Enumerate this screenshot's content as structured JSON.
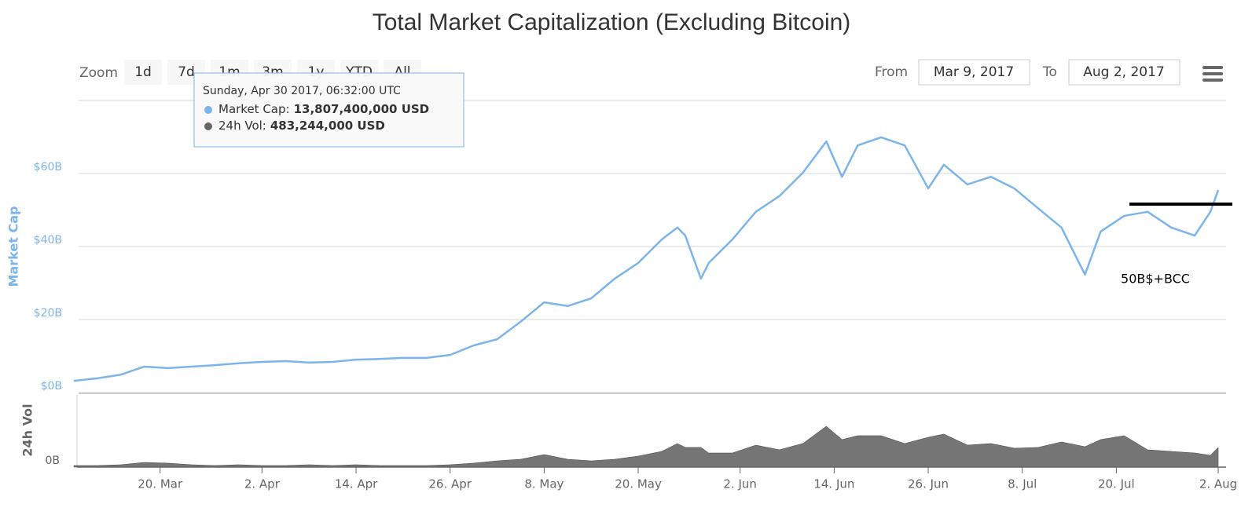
{
  "toolbar": {
    "zoom_label": "Zoom",
    "buttons": [
      "1d",
      "7d",
      "1m",
      "3m",
      "1y",
      "YTD",
      "All"
    ],
    "from_label": "From",
    "from": "Mar 9, 2017",
    "to_label": "To",
    "to": "Aug 2, 2017"
  },
  "tooltip": {
    "date": "Sunday, Apr 30 2017, 06:32:00 UTC",
    "rows": [
      {
        "label": "Market Cap:",
        "value": "13,807,400,000 USD",
        "color": "#7cb5ec"
      },
      {
        "label": "24h Vol:",
        "value": "483,244,000 USD",
        "color": "#666666"
      }
    ]
  },
  "chart_data": {
    "type": "line",
    "title": "Total Market Capitalization (Excluding Bitcoin)",
    "y_label": "Market Cap",
    "y2_label": "24h Vol",
    "annotation": "50B$+BCC",
    "x": [
      "2017-03-09",
      "2017-03-12",
      "2017-03-15",
      "2017-03-18",
      "2017-03-21",
      "2017-03-24",
      "2017-03-27",
      "2017-03-30",
      "2017-04-02",
      "2017-04-05",
      "2017-04-08",
      "2017-04-11",
      "2017-04-14",
      "2017-04-17",
      "2017-04-20",
      "2017-04-23",
      "2017-04-26",
      "2017-04-29",
      "2017-05-02",
      "2017-05-05",
      "2017-05-08",
      "2017-05-11",
      "2017-05-14",
      "2017-05-17",
      "2017-05-20",
      "2017-05-23",
      "2017-05-25",
      "2017-05-26",
      "2017-05-28",
      "2017-05-29",
      "2017-06-01",
      "2017-06-04",
      "2017-06-07",
      "2017-06-10",
      "2017-06-13",
      "2017-06-15",
      "2017-06-17",
      "2017-06-20",
      "2017-06-23",
      "2017-06-26",
      "2017-06-28",
      "2017-07-01",
      "2017-07-04",
      "2017-07-07",
      "2017-07-10",
      "2017-07-13",
      "2017-07-16",
      "2017-07-18",
      "2017-07-21",
      "2017-07-24",
      "2017-07-27",
      "2017-07-30",
      "2017-08-01",
      "2017-08-02"
    ],
    "series": [
      {
        "name": "Market Cap",
        "color": "#7cb5ec",
        "axis": "y",
        "values": [
          3.2,
          3.9,
          4.9,
          7.1,
          6.7,
          7.1,
          7.5,
          8.0,
          8.4,
          8.6,
          8.2,
          8.4,
          9.0,
          9.2,
          9.5,
          9.5,
          10.3,
          12.9,
          14.6,
          19.4,
          24.7,
          23.7,
          25.8,
          31.2,
          35.5,
          41.9,
          45.2,
          43.0,
          31.2,
          35.5,
          41.9,
          49.5,
          53.8,
          60.2,
          68.8,
          59.1,
          67.7,
          69.9,
          67.7,
          55.9,
          62.4,
          57.0,
          59.1,
          55.9,
          50.5,
          45.2,
          32.3,
          44.1,
          48.4,
          49.5,
          45.2,
          43.0,
          49.5,
          55.5
        ]
      },
      {
        "name": "24h Vol",
        "color": "#666666",
        "axis": "y2",
        "values": [
          0.18,
          0.18,
          0.27,
          0.53,
          0.45,
          0.27,
          0.18,
          0.27,
          0.18,
          0.18,
          0.27,
          0.18,
          0.27,
          0.18,
          0.18,
          0.18,
          0.27,
          0.45,
          0.71,
          0.89,
          1.42,
          0.89,
          0.71,
          0.89,
          1.25,
          1.78,
          2.67,
          2.23,
          2.23,
          1.6,
          1.6,
          2.49,
          1.96,
          2.67,
          4.63,
          3.12,
          3.56,
          3.56,
          2.67,
          3.38,
          3.74,
          2.49,
          2.67,
          2.14,
          2.23,
          2.85,
          2.31,
          3.12,
          3.56,
          1.96,
          1.78,
          1.6,
          1.34,
          2.23
        ]
      }
    ],
    "xlim": [
      "2017-03-09",
      "2017-08-03"
    ],
    "xticks": [
      {
        "value": "2017-03-20",
        "label": "20. Mar"
      },
      {
        "value": "2017-04-02",
        "label": "2. Apr"
      },
      {
        "value": "2017-04-14",
        "label": "14. Apr"
      },
      {
        "value": "2017-04-26",
        "label": "26. Apr"
      },
      {
        "value": "2017-05-08",
        "label": "8. May"
      },
      {
        "value": "2017-05-20",
        "label": "20. May"
      },
      {
        "value": "2017-06-02",
        "label": "2. Jun"
      },
      {
        "value": "2017-06-14",
        "label": "14. Jun"
      },
      {
        "value": "2017-06-26",
        "label": "26. Jun"
      },
      {
        "value": "2017-07-08",
        "label": "8. Jul"
      },
      {
        "value": "2017-07-20",
        "label": "20. Jul"
      },
      {
        "value": "2017-08-02",
        "label": "2. Aug"
      }
    ],
    "ylim": [
      0,
      80
    ],
    "yticks": [
      {
        "value": 0,
        "label": "$0B"
      },
      {
        "value": 20,
        "label": "$20B"
      },
      {
        "value": 40,
        "label": "$40B"
      },
      {
        "value": 60,
        "label": "$60B"
      }
    ],
    "y2lim": [
      0,
      8
    ],
    "y2ticks": [
      {
        "value": 0,
        "label": "0B"
      }
    ],
    "grid": true
  }
}
